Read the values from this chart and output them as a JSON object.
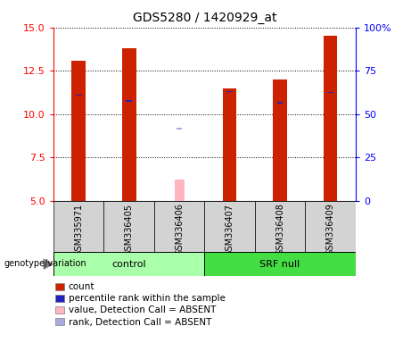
{
  "title": "GDS5280 / 1420929_at",
  "samples": [
    "GSM335971",
    "GSM336405",
    "GSM336406",
    "GSM336407",
    "GSM336408",
    "GSM336409"
  ],
  "count_values": [
    13.1,
    13.8,
    null,
    11.5,
    12.0,
    14.5
  ],
  "count_absent_values": [
    null,
    null,
    6.2,
    null,
    null,
    null
  ],
  "rank_values": [
    11.1,
    10.75,
    null,
    11.3,
    10.65,
    11.25
  ],
  "rank_absent_values": [
    null,
    null,
    9.15,
    null,
    null,
    null
  ],
  "ylim": [
    5,
    15
  ],
  "y2lim": [
    0,
    100
  ],
  "yticks": [
    5,
    7.5,
    10,
    12.5,
    15
  ],
  "y2ticks": [
    0,
    25,
    50,
    75,
    100
  ],
  "y2ticklabels": [
    "0",
    "25",
    "50",
    "75",
    "100%"
  ],
  "bar_color": "#CC2200",
  "bar_absent_color": "#FFB6C1",
  "rank_color": "#2222BB",
  "rank_absent_color": "#AAAADD",
  "bar_width": 0.28,
  "rank_sq_size": 0.08,
  "absent_sq_size": 0.07,
  "plot_bg": "#FFFFFF",
  "label_area_bg": "#D3D3D3",
  "control_color": "#AAFFAA",
  "srfnull_color": "#44DD44",
  "genotype_label": "genotype/variation",
  "legend_items": [
    {
      "label": "count",
      "color": "#CC2200"
    },
    {
      "label": "percentile rank within the sample",
      "color": "#2222BB"
    },
    {
      "label": "value, Detection Call = ABSENT",
      "color": "#FFB6C1"
    },
    {
      "label": "rank, Detection Call = ABSENT",
      "color": "#AAAADD"
    }
  ]
}
